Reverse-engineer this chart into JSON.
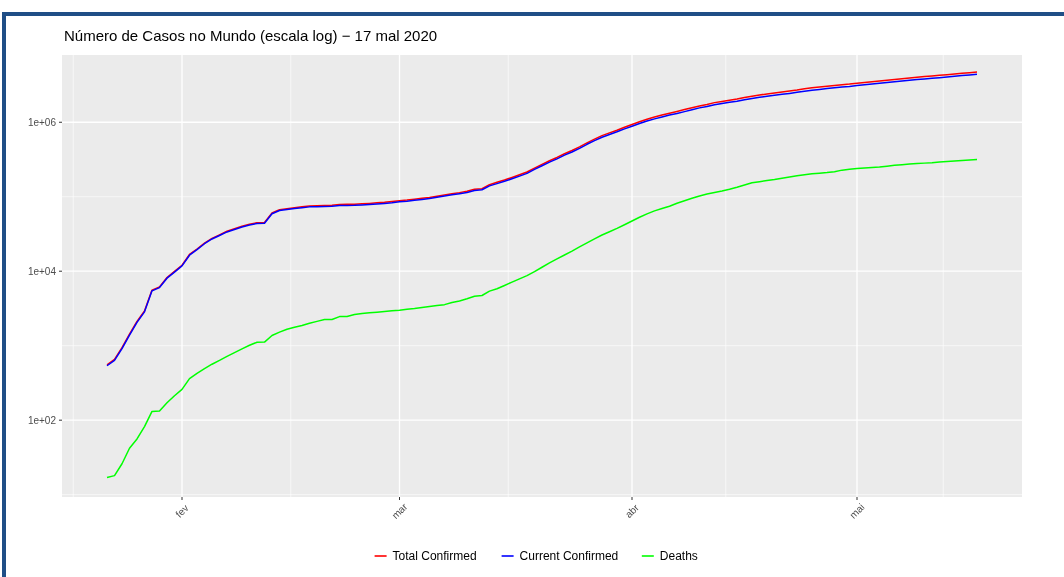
{
  "chart_data": {
    "type": "line",
    "title": "Número de Casos no Mundo (escala log) − 17 mal 2020",
    "categories": [
      null,
      null,
      null,
      null,
      null,
      null,
      null,
      null,
      null,
      null,
      "fev",
      null,
      null,
      null,
      null,
      null,
      null,
      null,
      null,
      null,
      null,
      null,
      null,
      null,
      null,
      null,
      null,
      null,
      null,
      null,
      null,
      null,
      null,
      null,
      null,
      null,
      null,
      null,
      null,
      "mar",
      null,
      null,
      null,
      null,
      null,
      null,
      null,
      null,
      null,
      null,
      null,
      null,
      null,
      null,
      null,
      null,
      null,
      null,
      null,
      null,
      null,
      null,
      null,
      null,
      null,
      null,
      null,
      null,
      null,
      null,
      "abr",
      null,
      null,
      null,
      null,
      null,
      null,
      null,
      null,
      null,
      null,
      null,
      null,
      null,
      null,
      null,
      null,
      null,
      null,
      null,
      null,
      null,
      null,
      null,
      null,
      null,
      null,
      null,
      null,
      null,
      "mai",
      null,
      null,
      null,
      null,
      null,
      null,
      null,
      null,
      null,
      null,
      null,
      null,
      null,
      null,
      null,
      null
    ],
    "series": [
      {
        "name": "Total Confirmed",
        "color": "#ff0000",
        "values": [
          555,
          654,
          941,
          1434,
          2118,
          2927,
          5578,
          6166,
          8234,
          9927,
          12038,
          16787,
          19887,
          23898,
          27643,
          30802,
          34395,
          37129,
          40159,
          42768,
          44810,
          45228,
          60381,
          66909,
          69052,
          71235,
          73270,
          75152,
          75652,
          76212,
          76841,
          78602,
          78982,
          79546,
          80399,
          81376,
          82738,
          84122,
          86011,
          88371,
          90309,
          92844,
          95124,
          97886,
          101800,
          105836,
          109835,
          113582,
          118582,
          125865,
          128343,
          145193,
          156097,
          167449,
          181546,
          197168,
          214915,
          242713,
          272167,
          304528,
          337020,
          378287,
          418045,
          467653,
          529591,
          593291,
          660693,
          720140,
          782389,
          857487,
          932605,
          1013466,
          1095917,
          1176060,
          1249754,
          1321481,
          1396476,
          1479804,
          1565278,
          1657526,
          1735650,
          1834721,
          1904838,
          1976191,
          2056054,
          2152437,
          2240190,
          2317758,
          2401378,
          2472259,
          2549294,
          2624068,
          2708885,
          2811193,
          2897645,
          2971477,
          3041764,
          3116398,
          3193886,
          3256846,
          3343777,
          3427584,
          3506729,
          3583055,
          3662691,
          3755341,
          3845718,
          3938064,
          4024009,
          4101699,
          4177504,
          4261747,
          4347018,
          4442163,
          4542347,
          4634068,
          4713620
        ]
      },
      {
        "name": "Current Confirmed",
        "color": "#0000ff",
        "values": [
          538,
          636,
          915,
          1390,
          2060,
          2850,
          5450,
          6030,
          8060,
          9710,
          11800,
          16400,
          19500,
          23400,
          27100,
          30200,
          33700,
          36300,
          39300,
          41800,
          43700,
          44100,
          59000,
          65400,
          67400,
          69500,
          71400,
          73100,
          73500,
          74000,
          74600,
          76100,
          76500,
          76900,
          77700,
          78600,
          79900,
          81300,
          83100,
          85400,
          87200,
          89700,
          91900,
          94500,
          98300,
          102000,
          106000,
          110000,
          114000,
          121000,
          124000,
          140000,
          150000,
          161000,
          174000,
          189000,
          206000,
          233000,
          261000,
          292000,
          322000,
          362000,
          399000,
          446000,
          506000,
          566000,
          630000,
          686000,
          745000,
          815000,
          885000,
          960000,
          1040000,
          1110000,
          1180000,
          1250000,
          1310000,
          1390000,
          1470000,
          1560000,
          1630000,
          1720000,
          1790000,
          1850000,
          1920000,
          2010000,
          2090000,
          2160000,
          2240000,
          2300000,
          2370000,
          2440000,
          2520000,
          2610000,
          2690000,
          2760000,
          2830000,
          2900000,
          2970000,
          3020000,
          3110000,
          3180000,
          3260000,
          3330000,
          3410000,
          3490000,
          3580000,
          3660000,
          3740000,
          3820000,
          3890000,
          3970000,
          4050000,
          4140000,
          4230000,
          4320000,
          4400000
        ]
      },
      {
        "name": "Deaths",
        "color": "#00ff00",
        "values": [
          17,
          18,
          26,
          42,
          56,
          82,
          131,
          133,
          171,
          213,
          259,
          362,
          426,
          492,
          564,
          634,
          719,
          806,
          906,
          1013,
          1113,
          1118,
          1371,
          1523,
          1666,
          1770,
          1868,
          2007,
          2122,
          2247,
          2251,
          2458,
          2469,
          2629,
          2708,
          2770,
          2814,
          2872,
          2941,
          2996,
          3085,
          3160,
          3254,
          3348,
          3460,
          3558,
          3802,
          3988,
          4262,
          4615,
          4720,
          5404,
          5819,
          6440,
          7126,
          7905,
          8733,
          9867,
          11299,
          12973,
          14623,
          16497,
          18615,
          21181,
          23970,
          27198,
          30652,
          33925,
          37582,
          42107,
          47180,
          52983,
          58787,
          64606,
          69374,
          74565,
          81865,
          88338,
          95455,
          102525,
          108502,
          114090,
          119481,
          125983,
          134176,
          143800,
          153822,
          159510,
          165044,
          170423,
          177641,
          183981,
          190858,
          197245,
          202846,
          206544,
          211167,
          217153,
          227638,
          233388,
          238650,
          243808,
          247470,
          251537,
          257239,
          263855,
          269567,
          274898,
          279311,
          282709,
          286330,
          291942,
          297197,
          302418,
          307666,
          311781,
          315185
        ]
      }
    ],
    "log": true,
    "ylim": [
      9.3,
      8000000
    ],
    "yticks": [
      {
        "value": 100,
        "label": "1e+02"
      },
      {
        "value": 10000,
        "label": "1e+04"
      },
      {
        "value": 1000000,
        "label": "1e+06"
      }
    ],
    "grid": true,
    "legend": "bottom"
  }
}
